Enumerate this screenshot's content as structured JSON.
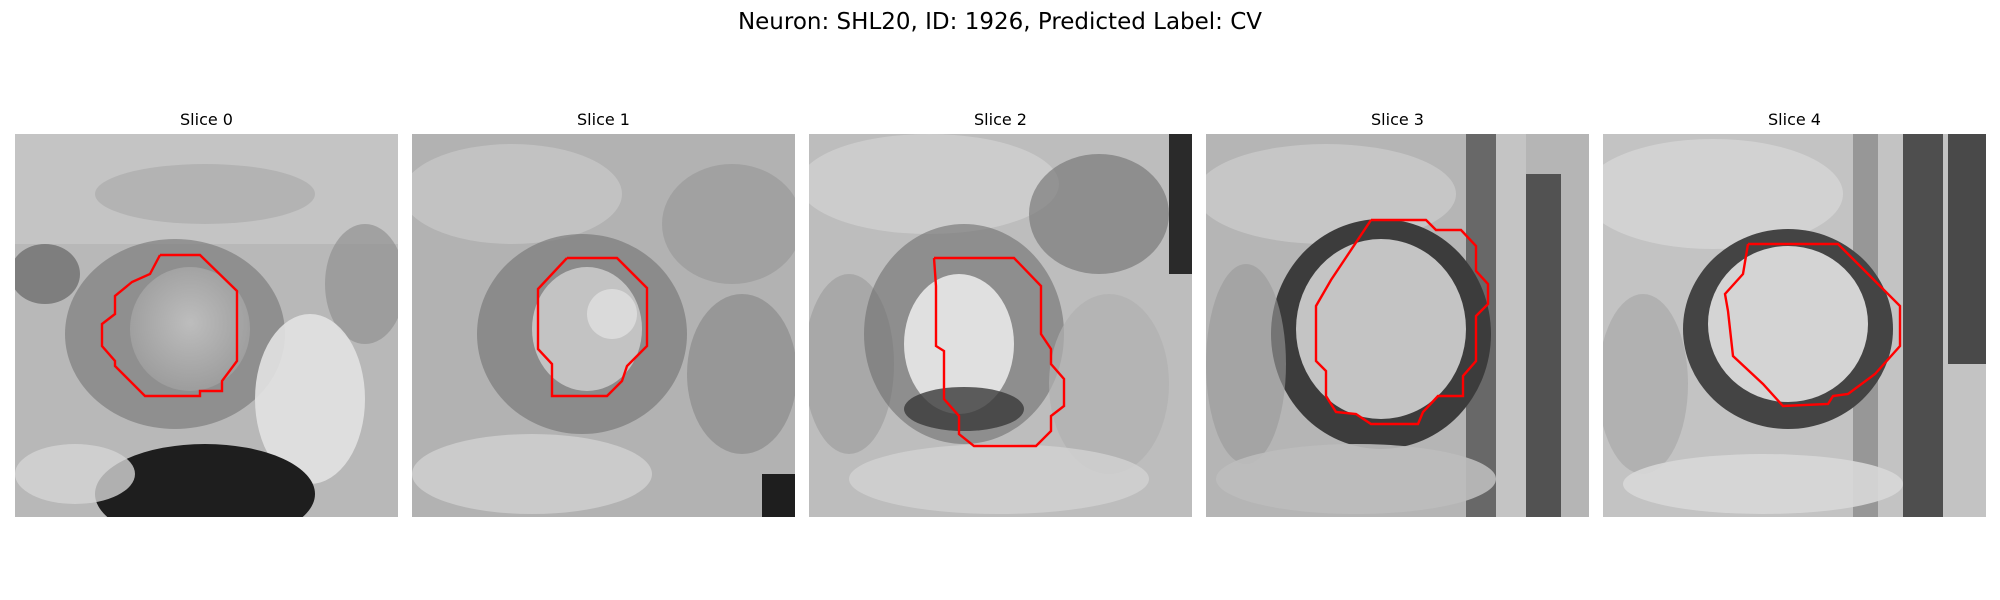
{
  "figure": {
    "title": "Neuron: SHL20, ID: 1926, Predicted Label: CV",
    "outline_color": "#ff0000"
  },
  "panels": [
    {
      "title": "Slice 0"
    },
    {
      "title": "Slice 1"
    },
    {
      "title": "Slice 2"
    },
    {
      "title": "Slice 3"
    },
    {
      "title": "Slice 4"
    }
  ]
}
